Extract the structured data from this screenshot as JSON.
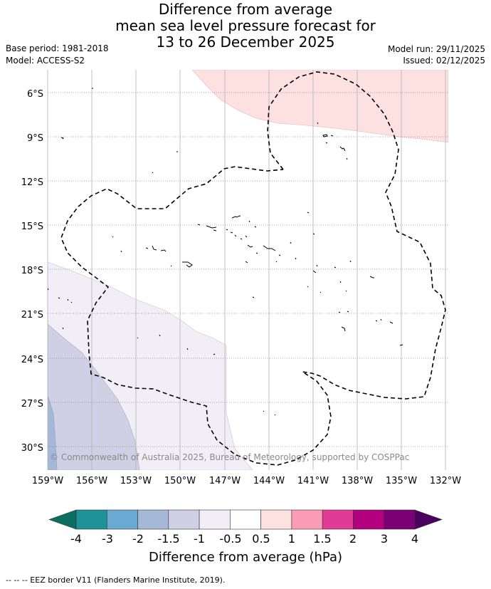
{
  "title": {
    "line1": "Difference from average",
    "line2": "mean sea level pressure forecast for",
    "line3": "13 to 26 December 2025"
  },
  "meta_left": {
    "base_period": "Base period: 1981-2018",
    "model": "Model: ACCESS-S2"
  },
  "meta_right": {
    "model_run": "Model run: 29/11/2025",
    "issued": "Issued: 02/12/2025"
  },
  "map": {
    "lat_labels": [
      "6°S",
      "9°S",
      "12°S",
      "15°S",
      "18°S",
      "21°S",
      "24°S",
      "27°S",
      "30°S"
    ],
    "lon_labels": [
      "159°W",
      "156°W",
      "153°W",
      "150°W",
      "147°W",
      "144°W",
      "141°W",
      "138°W",
      "135°W",
      "132°W"
    ],
    "copyright": "© Commonwealth of Australia 2025, Bureau of Meteorology, supported by COSPPac",
    "region_values": {
      "pink_region": "0.5 to 1 hPa",
      "lavender_region": "-1 to -0.5 hPa",
      "blue_region": "-1.5 to -1 hPa",
      "darker_blue_region": "-2 to -1.5 hPa"
    }
  },
  "colorbar": {
    "tick_labels": [
      "-4",
      "-3",
      "-2",
      "-1.5",
      "-1",
      "-0.5",
      "0.5",
      "1",
      "1.5",
      "2",
      "3",
      "4"
    ],
    "colors": [
      "#1e9296",
      "#6aa9d2",
      "#a6b8d8",
      "#d0d0e4",
      "#f2eef5",
      "#ffffff",
      "#fde0e0",
      "#f99cb4",
      "#e13b95",
      "#b2007e",
      "#7b0074"
    ],
    "extend_low_color": "#0c6e61",
    "extend_high_color": "#4b0060",
    "label": "Difference from average (hPa)"
  },
  "footnote": "--  --  -- EEZ border V11 (Flanders Marine Institute, 2019)."
}
